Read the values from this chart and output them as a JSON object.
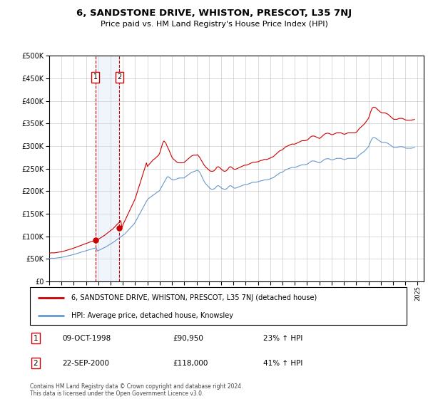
{
  "title": "6, SANDSTONE DRIVE, WHISTON, PRESCOT, L35 7NJ",
  "subtitle": "Price paid vs. HM Land Registry's House Price Index (HPI)",
  "legend_property": "6, SANDSTONE DRIVE, WHISTON, PRESCOT, L35 7NJ (detached house)",
  "legend_hpi": "HPI: Average price, detached house, Knowsley",
  "footer": "Contains HM Land Registry data © Crown copyright and database right 2024.\nThis data is licensed under the Open Government Licence v3.0.",
  "transactions": [
    {
      "label": "1",
      "date": "09-OCT-1998",
      "price": 90950,
      "pct": "23%",
      "dir": "↑",
      "x": 1998.77
    },
    {
      "label": "2",
      "date": "22-SEP-2000",
      "price": 118000,
      "pct": "41%",
      "dir": "↑",
      "x": 2000.72
    }
  ],
  "property_color": "#cc0000",
  "hpi_color": "#6699cc",
  "shade_color": "#cce0f5",
  "marker_box_color": "#cc0000",
  "ylim": [
    0,
    500000
  ],
  "xlim": [
    1995.0,
    2025.5
  ],
  "yticks": [
    0,
    50000,
    100000,
    150000,
    200000,
    250000,
    300000,
    350000,
    400000,
    450000,
    500000
  ],
  "xticks": [
    1995,
    1996,
    1997,
    1998,
    1999,
    2000,
    2001,
    2002,
    2003,
    2004,
    2005,
    2006,
    2007,
    2008,
    2009,
    2010,
    2011,
    2012,
    2013,
    2014,
    2015,
    2016,
    2017,
    2018,
    2019,
    2020,
    2021,
    2022,
    2023,
    2024,
    2025
  ],
  "hpi_base_values": [
    55.0,
    55.3,
    55.6,
    55.9,
    55.5,
    55.7,
    56.0,
    56.3,
    56.6,
    57.0,
    57.3,
    57.6,
    57.9,
    58.4,
    58.9,
    59.5,
    60.0,
    60.6,
    61.2,
    61.8,
    62.4,
    63.0,
    63.6,
    64.3,
    65.0,
    65.8,
    66.5,
    67.3,
    68.0,
    68.8,
    69.5,
    70.3,
    71.0,
    71.8,
    72.5,
    73.3,
    74.0,
    74.8,
    75.5,
    76.3,
    77.0,
    77.8,
    78.5,
    79.3,
    79.8,
    80.3,
    80.8,
    73.6,
    74.3,
    75.5,
    76.7,
    77.9,
    79.0,
    80.2,
    81.3,
    82.8,
    84.3,
    85.8,
    87.3,
    88.8,
    90.2,
    91.7,
    93.1,
    95.0,
    96.8,
    98.7,
    100.5,
    102.3,
    104.0,
    105.8,
    107.5,
    109.3,
    111.0,
    113.0,
    115.0,
    117.7,
    120.4,
    123.1,
    125.7,
    128.4,
    131.1,
    133.8,
    136.4,
    139.1,
    143.0,
    147.6,
    152.2,
    156.8,
    161.4,
    166.0,
    170.5,
    175.1,
    179.7,
    184.3,
    188.8,
    193.4,
    197.4,
    200.1,
    202.0,
    203.9,
    205.7,
    207.5,
    209.2,
    210.9,
    212.7,
    214.4,
    216.2,
    218.0,
    220.1,
    224.6,
    229.1,
    233.6,
    238.1,
    242.6,
    247.1,
    251.6,
    253.4,
    251.6,
    249.8,
    248.0,
    246.2,
    245.3,
    245.3,
    246.2,
    247.1,
    248.0,
    249.0,
    250.0,
    249.9,
    249.9,
    249.9,
    249.9,
    250.8,
    252.6,
    254.4,
    256.2,
    258.0,
    259.8,
    261.6,
    263.4,
    264.3,
    265.2,
    266.1,
    267.0,
    267.9,
    268.8,
    266.9,
    264.2,
    259.6,
    254.1,
    248.9,
    243.7,
    239.4,
    235.9,
    233.3,
    230.6,
    227.9,
    225.2,
    223.5,
    222.6,
    222.6,
    223.5,
    225.2,
    227.9,
    230.6,
    231.5,
    230.6,
    228.9,
    226.2,
    224.5,
    223.5,
    222.6,
    222.6,
    223.5,
    225.2,
    227.9,
    230.6,
    231.5,
    230.6,
    228.9,
    226.2,
    225.4,
    225.4,
    226.2,
    227.1,
    228.1,
    229.0,
    230.0,
    231.0,
    232.0,
    233.0,
    234.0,
    234.0,
    234.0,
    234.9,
    235.9,
    236.9,
    237.8,
    238.8,
    239.7,
    239.7,
    239.7,
    239.7,
    240.6,
    240.6,
    241.5,
    242.5,
    243.4,
    243.4,
    244.3,
    245.3,
    245.3,
    245.3,
    245.3,
    246.2,
    247.1,
    248.0,
    249.0,
    249.9,
    250.8,
    252.6,
    254.4,
    256.2,
    258.0,
    259.8,
    261.6,
    262.5,
    263.4,
    264.3,
    266.1,
    267.9,
    269.8,
    270.7,
    271.6,
    272.5,
    273.5,
    274.4,
    275.4,
    275.4,
    275.4,
    275.4,
    276.3,
    277.2,
    278.1,
    279.1,
    280.0,
    281.0,
    282.0,
    282.0,
    282.0,
    282.0,
    283.0,
    283.0,
    284.8,
    286.7,
    288.5,
    290.3,
    291.2,
    291.2,
    291.2,
    290.3,
    289.3,
    288.4,
    287.5,
    286.6,
    287.5,
    289.3,
    291.2,
    293.0,
    294.8,
    295.7,
    296.6,
    296.6,
    296.6,
    295.7,
    294.8,
    293.9,
    293.9,
    294.8,
    295.7,
    296.6,
    297.5,
    297.5,
    297.5,
    297.5,
    297.5,
    296.6,
    295.7,
    294.8,
    294.8,
    295.7,
    296.6,
    297.5,
    297.5,
    297.5,
    297.5,
    297.5,
    297.5,
    297.5,
    297.5,
    298.4,
    300.2,
    302.9,
    305.6,
    307.4,
    309.2,
    311.1,
    312.9,
    314.7,
    317.4,
    320.1,
    322.8,
    325.5,
    331.1,
    337.5,
    342.9,
    346.5,
    347.5,
    347.5,
    346.5,
    344.8,
    342.9,
    341.2,
    339.3,
    337.5,
    336.5,
    336.5,
    336.5,
    336.5,
    335.6,
    334.7,
    333.8,
    332.0,
    330.2,
    328.4,
    326.6,
    324.8,
    323.8,
    323.8,
    323.8,
    323.8,
    324.8,
    325.7,
    325.7,
    325.7,
    325.7,
    324.8,
    323.8,
    322.9,
    322.0,
    322.0,
    322.0,
    322.0,
    322.0,
    322.0,
    322.9,
    322.9,
    323.8,
    324.8,
    325.7,
    325.7,
    325.7,
    325.7
  ],
  "prop_base_values": [
    55.0,
    55.3,
    55.6,
    55.9,
    55.5,
    55.7,
    56.0,
    56.3,
    56.6,
    57.0,
    57.3,
    57.6,
    57.9,
    58.4,
    58.9,
    59.5,
    60.0,
    60.6,
    61.2,
    61.8,
    62.4,
    63.0,
    63.6,
    64.3,
    65.0,
    65.8,
    66.5,
    67.3,
    68.0,
    68.8,
    69.5,
    70.3,
    71.0,
    71.8,
    72.5,
    73.3,
    74.0,
    74.8,
    75.5,
    76.3,
    77.0,
    77.8,
    78.5,
    79.3,
    79.8,
    80.3,
    80.8,
    81.4,
    82.3,
    83.6,
    84.9,
    86.2,
    87.4,
    88.7,
    89.9,
    91.5,
    93.1,
    94.7,
    96.3,
    97.9,
    99.4,
    100.9,
    102.4,
    104.5,
    106.5,
    108.6,
    110.6,
    112.7,
    114.8,
    116.8,
    118.9,
    104.0,
    110.4,
    114.6,
    118.9,
    123.1,
    127.4,
    131.7,
    136.0,
    140.3,
    144.5,
    148.8,
    153.1,
    157.3,
    161.6,
    168.0,
    174.4,
    180.8,
    187.2,
    193.5,
    199.9,
    206.3,
    212.7,
    219.1,
    225.4,
    231.8,
    224.8,
    227.5,
    229.8,
    232.2,
    234.5,
    236.8,
    238.8,
    239.7,
    241.6,
    243.5,
    245.4,
    247.3,
    251.2,
    257.9,
    264.6,
    271.2,
    274.7,
    272.9,
    270.3,
    265.5,
    261.2,
    257.2,
    252.2,
    247.4,
    242.7,
    240.2,
    238.2,
    236.5,
    234.7,
    233.0,
    232.1,
    232.1,
    232.1,
    232.1,
    232.1,
    232.1,
    233.0,
    234.7,
    236.5,
    238.2,
    240.0,
    241.8,
    243.5,
    245.3,
    246.2,
    247.0,
    247.0,
    247.0,
    247.0,
    247.9,
    245.3,
    242.7,
    239.2,
    235.8,
    232.3,
    228.8,
    226.1,
    223.6,
    221.8,
    220.0,
    218.2,
    216.4,
    215.5,
    215.5,
    215.5,
    216.4,
    218.2,
    220.9,
    223.6,
    224.4,
    223.6,
    222.0,
    220.1,
    218.2,
    216.4,
    215.5,
    215.5,
    216.4,
    218.2,
    220.9,
    223.6,
    224.4,
    223.6,
    222.0,
    220.1,
    219.3,
    219.3,
    220.1,
    221.0,
    222.0,
    222.9,
    223.8,
    224.7,
    225.7,
    226.6,
    227.5,
    227.5,
    227.5,
    228.4,
    229.3,
    230.3,
    231.2,
    232.1,
    233.1,
    233.1,
    233.1,
    233.1,
    234.0,
    234.0,
    234.9,
    235.9,
    236.8,
    236.8,
    237.7,
    238.7,
    238.7,
    238.7,
    238.7,
    239.6,
    240.5,
    241.5,
    242.4,
    243.3,
    244.2,
    246.0,
    247.8,
    249.7,
    251.5,
    253.3,
    255.1,
    256.0,
    256.9,
    257.8,
    259.6,
    261.4,
    263.2,
    264.1,
    265.0,
    265.9,
    266.8,
    267.7,
    268.7,
    268.7,
    268.7,
    268.7,
    269.6,
    270.5,
    271.5,
    272.4,
    273.4,
    274.3,
    275.3,
    275.3,
    275.3,
    275.3,
    276.2,
    276.2,
    278.0,
    279.9,
    281.7,
    283.5,
    284.4,
    284.4,
    284.4,
    283.5,
    282.6,
    281.7,
    280.7,
    279.8,
    280.7,
    282.6,
    284.4,
    286.2,
    288.1,
    289.0,
    289.9,
    289.9,
    289.9,
    289.0,
    288.1,
    287.2,
    287.2,
    288.1,
    289.0,
    289.9,
    290.8,
    290.8,
    290.8,
    290.8,
    290.8,
    289.9,
    289.0,
    288.1,
    288.1,
    289.0,
    289.9,
    290.8,
    290.8,
    290.8,
    290.8,
    290.8,
    290.8,
    290.8,
    290.8,
    291.7,
    293.5,
    296.2,
    299.0,
    300.8,
    302.6,
    304.4,
    306.2,
    308.1,
    310.8,
    313.5,
    316.2,
    319.0,
    324.5,
    330.9,
    336.3,
    339.9,
    340.9,
    340.9,
    339.9,
    338.3,
    336.3,
    334.6,
    332.7,
    330.9,
    329.9,
    329.9,
    329.9,
    329.9,
    329.0,
    328.1,
    327.2,
    325.4,
    323.6,
    321.8,
    319.9,
    318.2,
    317.2,
    317.2,
    317.2,
    317.2,
    318.2,
    319.1,
    319.1,
    319.1,
    319.1,
    318.2,
    317.2,
    316.3,
    315.4,
    315.4,
    315.4,
    315.4,
    315.4,
    315.4,
    316.3,
    316.3,
    317.2,
    318.2,
    319.1,
    319.1,
    319.1,
    319.1
  ]
}
